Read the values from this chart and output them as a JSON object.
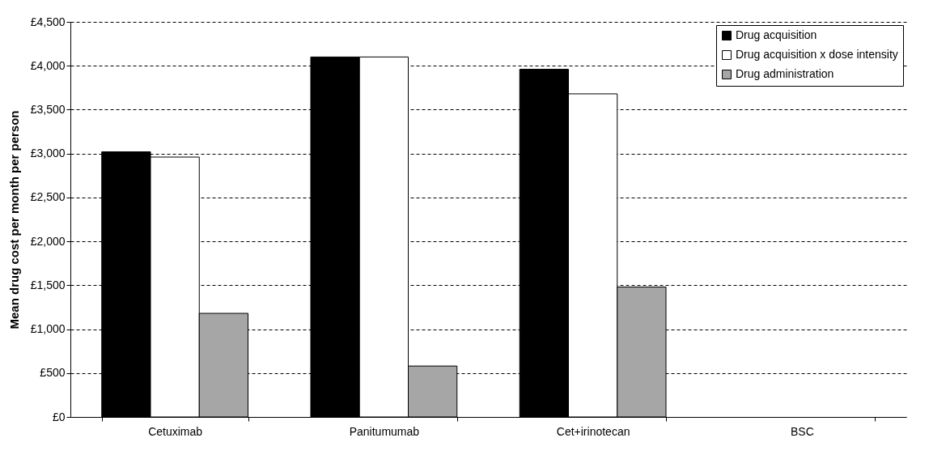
{
  "chart_data": {
    "type": "bar",
    "ylabel": "Mean drug cost per month per person",
    "categories": [
      "Cetuximab",
      "Panitumumab",
      "Cet+irinotecan",
      "BSC"
    ],
    "series": [
      {
        "name": "Drug acquisition",
        "color": "#000000",
        "values": [
          3020,
          4100,
          3960,
          null
        ]
      },
      {
        "name": "Drug acquisition x dose intensity",
        "color": "#ffffff",
        "values": [
          2960,
          4100,
          3680,
          null
        ]
      },
      {
        "name": "Drug administration",
        "color": "#a6a6a6",
        "values": [
          1180,
          580,
          1480,
          null
        ]
      }
    ],
    "ylim": [
      0,
      4500
    ],
    "yticks": [
      {
        "value": 0,
        "label": "£0"
      },
      {
        "value": 500,
        "label": "£500"
      },
      {
        "value": 1000,
        "label": "£1,000"
      },
      {
        "value": 1500,
        "label": "£1,500"
      },
      {
        "value": 2000,
        "label": "£2,000"
      },
      {
        "value": 2500,
        "label": "£2,500"
      },
      {
        "value": 3000,
        "label": "£3,000"
      },
      {
        "value": 3500,
        "label": "£3,500"
      },
      {
        "value": 4000,
        "label": "£4,000"
      },
      {
        "value": 4500,
        "label": "£4,500"
      }
    ],
    "grid": "y",
    "legend": "top right"
  }
}
